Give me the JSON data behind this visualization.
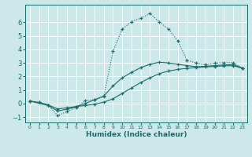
{
  "title": "",
  "xlabel": "Humidex (Indice chaleur)",
  "ylabel": "",
  "xlim": [
    -0.5,
    23.5
  ],
  "ylim": [
    -1.4,
    7.3
  ],
  "yticks": [
    -1,
    0,
    1,
    2,
    3,
    4,
    5,
    6
  ],
  "xticks": [
    0,
    1,
    2,
    3,
    4,
    5,
    6,
    7,
    8,
    9,
    10,
    11,
    12,
    13,
    14,
    15,
    16,
    17,
    18,
    19,
    20,
    21,
    22,
    23
  ],
  "bg_color": "#cce8e8",
  "grid_color": "#ffffff",
  "line_color": "#1a6b6b",
  "curve1_x": [
    0,
    1,
    2,
    3,
    4,
    5,
    6,
    7,
    8,
    9,
    10,
    11,
    12,
    13,
    14,
    15,
    16,
    17,
    18,
    19,
    20,
    21,
    22,
    23
  ],
  "curve1_y": [
    0.18,
    0.08,
    -0.1,
    -0.4,
    -0.32,
    -0.22,
    -0.15,
    -0.05,
    0.1,
    0.35,
    0.75,
    1.15,
    1.55,
    1.9,
    2.2,
    2.4,
    2.52,
    2.6,
    2.65,
    2.7,
    2.74,
    2.78,
    2.8,
    2.6
  ],
  "curve2_x": [
    0,
    2,
    3,
    4,
    5,
    6,
    7,
    8,
    9,
    10,
    11,
    12,
    13,
    14,
    15,
    16,
    17,
    18,
    19,
    20,
    21,
    22,
    23
  ],
  "curve2_y": [
    0.18,
    -0.15,
    -0.55,
    -0.42,
    -0.25,
    0.0,
    0.28,
    0.55,
    1.3,
    1.9,
    2.3,
    2.65,
    2.9,
    3.05,
    3.0,
    2.9,
    2.8,
    2.72,
    2.75,
    2.8,
    2.85,
    2.88,
    2.62
  ],
  "curve3_x": [
    0,
    1,
    2,
    3,
    4,
    5,
    6,
    7,
    8,
    9,
    10,
    11,
    12,
    13,
    14,
    15,
    16,
    17,
    18,
    19,
    20,
    21,
    22,
    23
  ],
  "curve3_y": [
    0.18,
    0.08,
    -0.1,
    -0.9,
    -0.6,
    -0.28,
    0.2,
    0.28,
    0.5,
    3.85,
    5.5,
    6.05,
    6.3,
    6.65,
    6.05,
    5.5,
    4.65,
    3.2,
    3.0,
    2.88,
    2.98,
    3.02,
    3.02,
    2.62
  ]
}
